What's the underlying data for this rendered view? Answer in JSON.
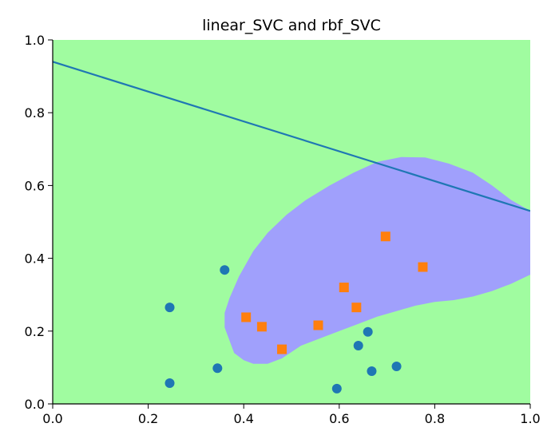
{
  "chart_data": {
    "type": "scatter",
    "title": "linear_SVC and rbf_SVC",
    "xlabel": "",
    "ylabel": "",
    "xlim": [
      0.0,
      1.0
    ],
    "ylim": [
      0.0,
      1.0
    ],
    "xticks": [
      "0.0",
      "0.2",
      "0.4",
      "0.6",
      "0.8",
      "1.0"
    ],
    "yticks": [
      "0.0",
      "0.2",
      "0.4",
      "0.6",
      "0.8",
      "1.0"
    ],
    "grid": false,
    "background_region_color": "#a0fca0",
    "decision_region_color": "#a0a0fc",
    "decision_region_outline": [
      [
        0.38,
        0.14
      ],
      [
        0.36,
        0.21
      ],
      [
        0.36,
        0.25
      ],
      [
        0.37,
        0.29
      ],
      [
        0.39,
        0.35
      ],
      [
        0.42,
        0.42
      ],
      [
        0.45,
        0.47
      ],
      [
        0.49,
        0.52
      ],
      [
        0.53,
        0.56
      ],
      [
        0.58,
        0.6
      ],
      [
        0.63,
        0.635
      ],
      [
        0.68,
        0.665
      ],
      [
        0.73,
        0.678
      ],
      [
        0.78,
        0.677
      ],
      [
        0.83,
        0.66
      ],
      [
        0.88,
        0.635
      ],
      [
        0.92,
        0.6
      ],
      [
        0.96,
        0.56
      ],
      [
        1.0,
        0.53
      ],
      [
        1.0,
        0.355
      ],
      [
        0.96,
        0.33
      ],
      [
        0.92,
        0.31
      ],
      [
        0.88,
        0.295
      ],
      [
        0.84,
        0.285
      ],
      [
        0.8,
        0.28
      ],
      [
        0.76,
        0.27
      ],
      [
        0.72,
        0.255
      ],
      [
        0.68,
        0.24
      ],
      [
        0.64,
        0.22
      ],
      [
        0.6,
        0.2
      ],
      [
        0.56,
        0.18
      ],
      [
        0.52,
        0.16
      ],
      [
        0.48,
        0.125
      ],
      [
        0.45,
        0.11
      ],
      [
        0.42,
        0.11
      ],
      [
        0.4,
        0.12
      ]
    ],
    "series": [
      {
        "marker": "circle",
        "color": "#1f77b4",
        "x": [
          0.245,
          0.245,
          0.345,
          0.36,
          0.595,
          0.64,
          0.66,
          0.668,
          0.72
        ],
        "y": [
          0.265,
          0.057,
          0.098,
          0.368,
          0.042,
          0.16,
          0.198,
          0.09,
          0.103
        ]
      },
      {
        "marker": "square",
        "color": "#ff7f0e",
        "x": [
          0.405,
          0.438,
          0.48,
          0.556,
          0.61,
          0.636,
          0.697,
          0.775
        ],
        "y": [
          0.238,
          0.212,
          0.15,
          0.216,
          0.32,
          0.265,
          0.46,
          0.376
        ]
      }
    ],
    "lines": [
      {
        "color": "#1f77b4",
        "x": [
          0.0,
          1.0
        ],
        "y": [
          0.94,
          0.53
        ]
      }
    ]
  }
}
